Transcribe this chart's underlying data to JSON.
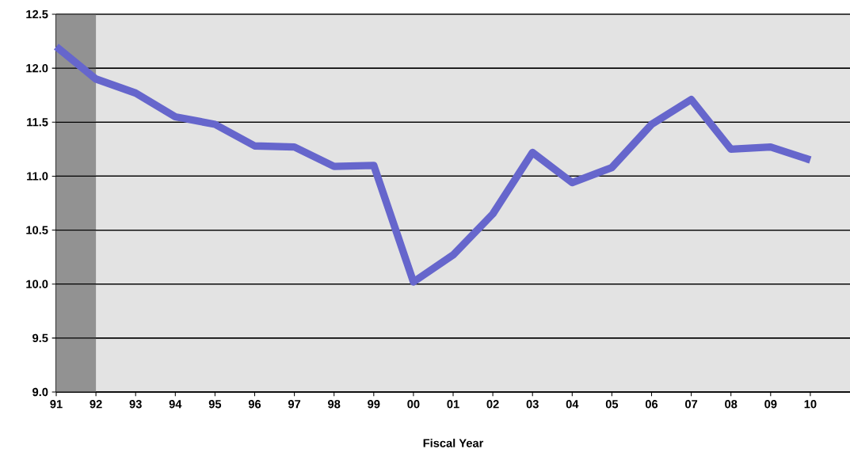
{
  "chart_data": {
    "type": "line",
    "xlabel": "Fiscal Year",
    "categories": [
      "91",
      "92",
      "93",
      "94",
      "95",
      "96",
      "97",
      "98",
      "99",
      "00",
      "01",
      "02",
      "03",
      "04",
      "05",
      "06",
      "07",
      "08",
      "09",
      "10"
    ],
    "values": [
      12.2,
      11.9,
      11.77,
      11.55,
      11.48,
      11.28,
      11.27,
      11.09,
      11.1,
      10.02,
      10.27,
      10.65,
      11.22,
      10.94,
      11.08,
      11.48,
      11.71,
      11.25,
      11.27,
      11.15
    ],
    "color": "#6666cc",
    "marker": "none",
    "line_style": "solid",
    "ylim": [
      9.0,
      12.5
    ],
    "yticks": [
      {
        "value": 9.0,
        "label": "9.0"
      },
      {
        "value": 9.5,
        "label": "9.5"
      },
      {
        "value": 10.0,
        "label": "10.0"
      },
      {
        "value": 10.5,
        "label": "10.5"
      },
      {
        "value": 11.0,
        "label": "11.0"
      },
      {
        "value": 11.5,
        "label": "11.5"
      },
      {
        "value": 12.0,
        "label": "12.0"
      },
      {
        "value": 12.5,
        "label": "12.5"
      }
    ],
    "grid": "y",
    "bands": [
      {
        "axis": "x",
        "from": "91",
        "to": "92",
        "color": "#929292"
      }
    ]
  }
}
